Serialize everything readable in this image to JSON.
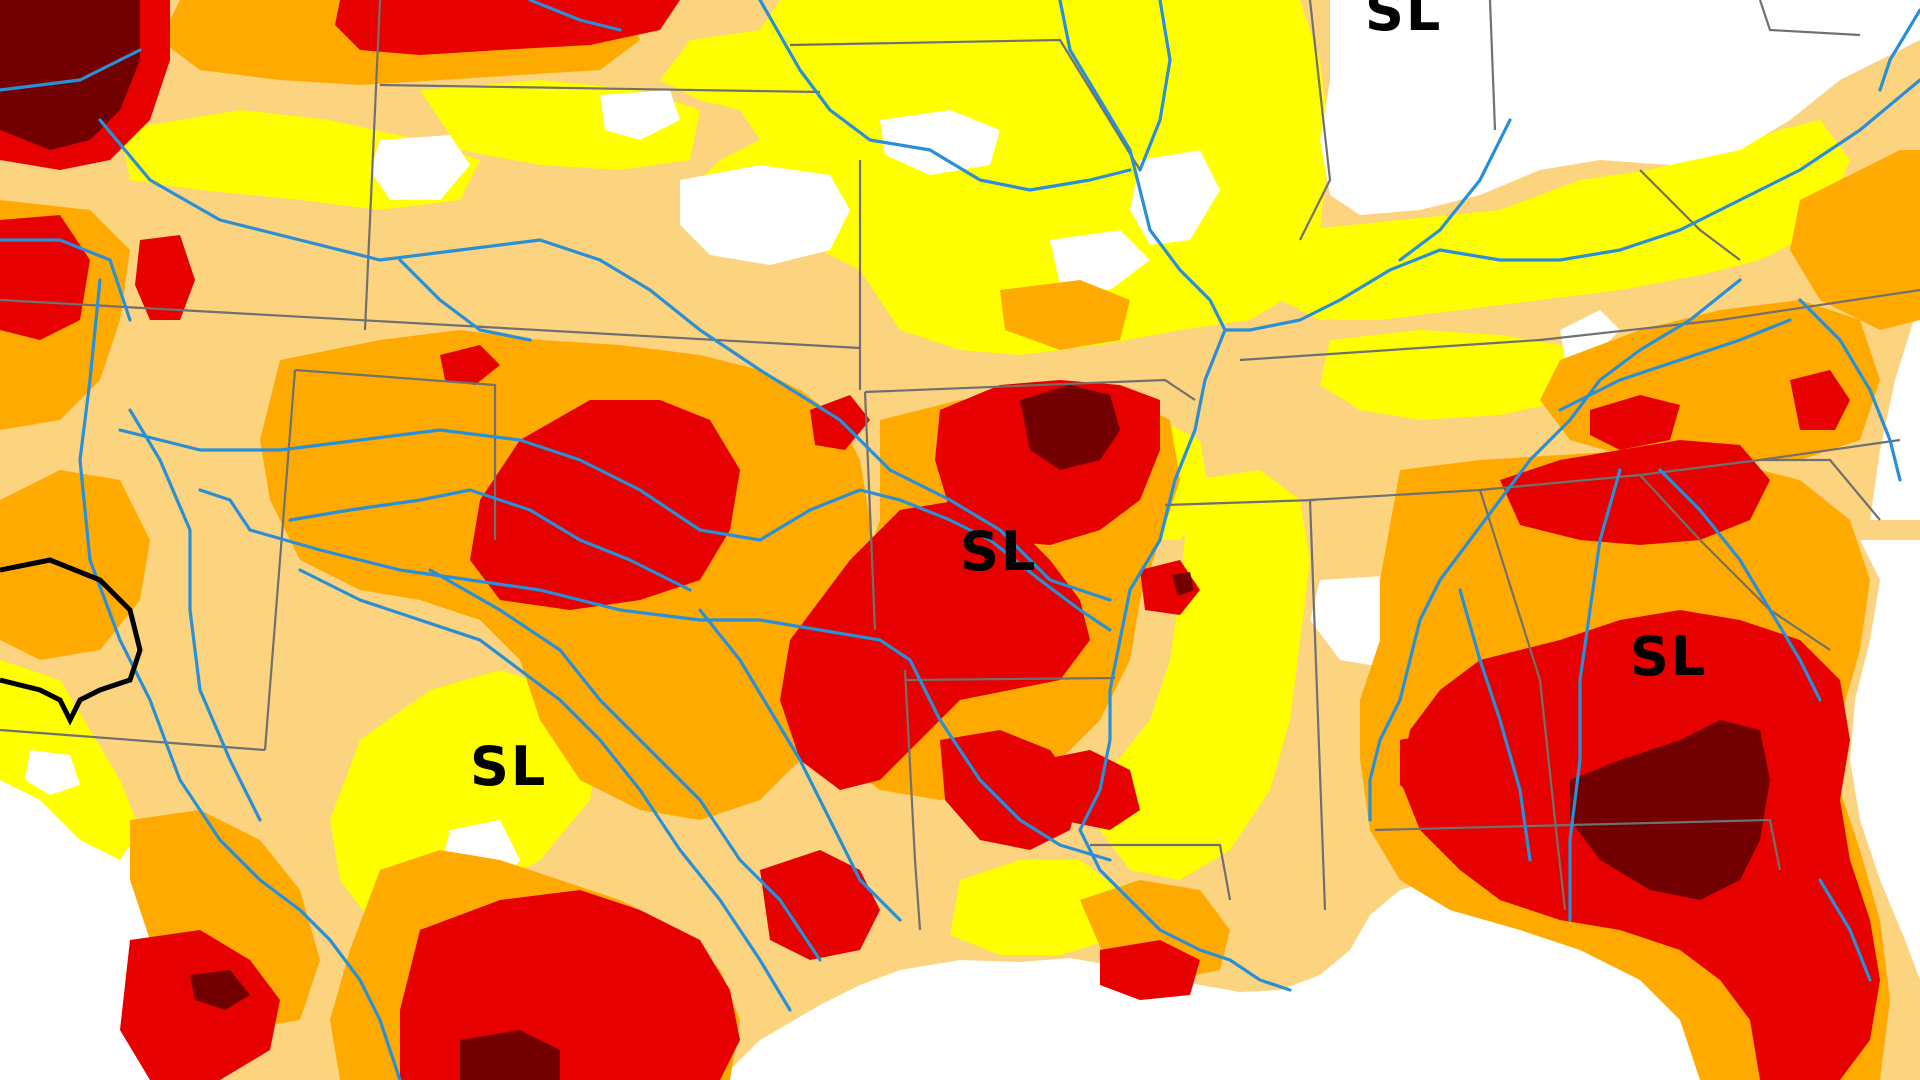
{
  "map": {
    "colors": {
      "none": "#ffffff",
      "D0": "#ffff00",
      "D1": "#fcd37f",
      "D2": "#ffaa00",
      "D3": "#e60000",
      "D4": "#730000",
      "river": "#2a8fd6",
      "state_border": "#707070",
      "impact_outline": "#000000",
      "water": "#ffffff"
    },
    "impact_labels": [
      {
        "id": "north",
        "text": "SL"
      },
      {
        "id": "arkansas",
        "text": "SL"
      },
      {
        "id": "texas",
        "text": "SL"
      },
      {
        "id": "georgia",
        "text": "SL"
      }
    ]
  }
}
